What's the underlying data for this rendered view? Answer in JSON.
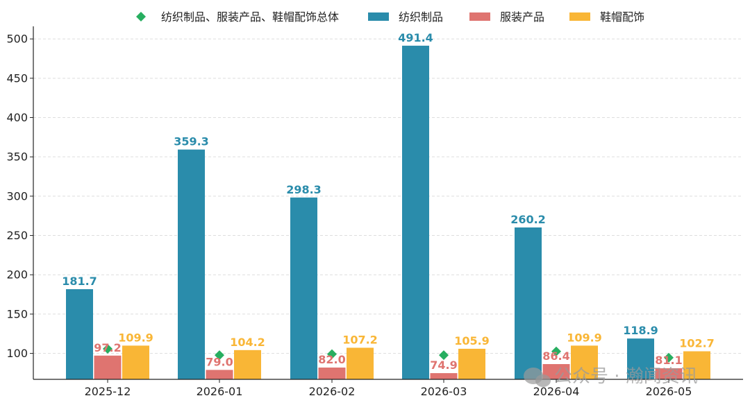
{
  "colors": {
    "total": "#27ae60",
    "textile": "#2a8cab",
    "apparel": "#df7470",
    "footwear": "#f9b636",
    "grid": "#dddddd",
    "axis": "#222222"
  },
  "legend": [
    {
      "label": "纺织制品、服装产品、鞋帽配饰总体",
      "marker": "diamond",
      "color": "#27ae60"
    },
    {
      "label": "纺织制品",
      "marker": "square",
      "color": "#2a8cab"
    },
    {
      "label": "服装产品",
      "marker": "square",
      "color": "#df7470"
    },
    {
      "label": "鞋帽配饰",
      "marker": "square",
      "color": "#f9b636"
    }
  ],
  "watermark": {
    "text": "公众号 · 瀚闻资讯",
    "icon": "wechat-icon"
  },
  "chart_data": {
    "type": "bar",
    "categories": [
      "2025-12",
      "2026-01",
      "2026-02",
      "2026-03",
      "2026-04",
      "2026-05"
    ],
    "series": [
      {
        "name": "纺织制品",
        "values": [
          181.7,
          359.3,
          298.3,
          491.4,
          260.2,
          118.9
        ]
      },
      {
        "name": "服装产品",
        "values": [
          97.2,
          79.0,
          82.0,
          74.9,
          86.4,
          81.1
        ]
      },
      {
        "name": "鞋帽配饰",
        "values": [
          109.9,
          104.2,
          107.2,
          105.9,
          109.9,
          102.7
        ]
      }
    ],
    "point_series": {
      "name": "纺织制品、服装产品、鞋帽配饰总体",
      "values": [
        105.8,
        97.8,
        99.1,
        97.8,
        102.5,
        94.6
      ]
    },
    "value_labels": [
      [
        "181.7",
        "359.3",
        "298.3",
        "491.4",
        "260.2",
        "118.9"
      ],
      [
        "97.2",
        "79.0",
        "82.0",
        "74.9",
        "86.4",
        "81.1"
      ],
      [
        "109.9",
        "104.2",
        "107.2",
        "105.9",
        "109.9",
        "102.7"
      ]
    ],
    "yticks": [
      100,
      150,
      200,
      250,
      300,
      350,
      400,
      450,
      500
    ],
    "ylim": [
      67,
      516
    ],
    "grid": true,
    "legend_position": "top"
  }
}
